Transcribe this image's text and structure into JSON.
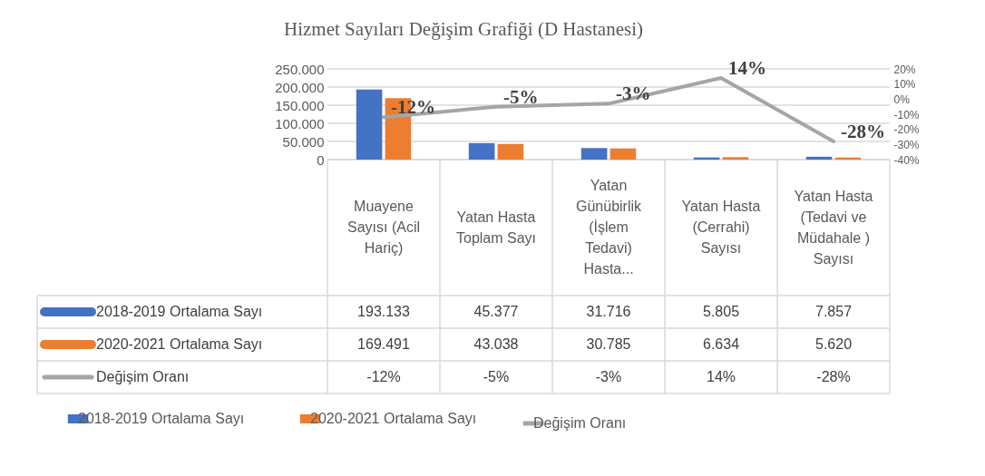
{
  "chart_data": {
    "type": "bar",
    "title": "Hizmet Sayıları Değişim Grafiği (D Hastanesi)",
    "categories": [
      "Muayene Sayısı (Acil Hariç)",
      "Yatan Hasta Toplam Sayı",
      "Yatan Günübirlik (İşlem Tedavi) Hasta...",
      "Yatan Hasta (Cerrahi) Sayısı",
      "Yatan Hasta (Tedavi ve Müdahale ) Sayısı"
    ],
    "series": [
      {
        "name": "2018-2019 Ortalama Sayı",
        "color": "#4472c4",
        "values": [
          193133,
          45377,
          31716,
          5805,
          7857
        ],
        "value_labels": [
          "193.133",
          "45.377",
          "31.716",
          "5.805",
          "7.857"
        ]
      },
      {
        "name": "2020-2021 Ortalama Sayı",
        "color": "#ed7d31",
        "values": [
          169491,
          43038,
          30785,
          6634,
          5620
        ],
        "value_labels": [
          "169.491",
          "43.038",
          "30.785",
          "6.634",
          "5.620"
        ]
      },
      {
        "name": "Değişim Oranı",
        "type": "line",
        "axis": "y2",
        "color": "#a5a5a5",
        "values": [
          -12,
          -5,
          -3,
          14,
          -28
        ],
        "value_labels": [
          "-12%",
          "-5%",
          "-3%",
          "14%",
          "-28%"
        ]
      }
    ],
    "ylim": [
      0,
      250000
    ],
    "yticks": [
      0,
      {
        "value": 50000,
        "label": "50.000"
      },
      {
        "value": 100000,
        "label": "100.000"
      },
      {
        "value": 150000,
        "label": "150.000"
      },
      {
        "value": 200000,
        "label": "200.000"
      },
      {
        "value": 250000,
        "label": "250.000"
      }
    ],
    "y2lim": [
      -40,
      20
    ],
    "y2ticks": [
      {
        "value": -40,
        "label": "-40%"
      },
      {
        "value": -30,
        "label": "-30%"
      },
      {
        "value": -20,
        "label": "-20%"
      },
      {
        "value": -10,
        "label": "-10%"
      },
      {
        "value": 0,
        "label": "0%"
      },
      {
        "value": 10,
        "label": "10%"
      },
      {
        "value": 20,
        "label": "20%"
      }
    ],
    "grid": "y",
    "legend": "bottom"
  }
}
